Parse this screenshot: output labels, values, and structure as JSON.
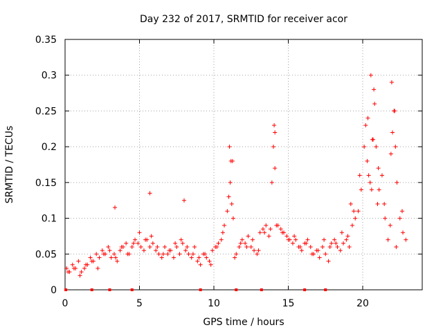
{
  "chart_data": {
    "type": "scatter",
    "title": "Day 232 of 2017, SRMTID for receiver acor",
    "xlabel": "GPS time / hours",
    "ylabel": "SRMTID / TECUs",
    "xlim": [
      0,
      24
    ],
    "ylim": [
      0,
      0.35
    ],
    "grid": true,
    "marker": "+",
    "color": "#ff0000",
    "xticks": [
      0,
      5,
      10,
      15,
      20
    ],
    "xtick_labels": [
      "0",
      "5",
      "10",
      "15",
      "20"
    ],
    "yticks": [
      0,
      0.05,
      0.1,
      0.15,
      0.2,
      0.25,
      0.3,
      0.35
    ],
    "ytick_labels": [
      "0",
      "0.05",
      "0.1",
      "0.15",
      "0.2",
      "0.25",
      "0.3",
      "0.35"
    ],
    "gap_markers_x": [
      0.05,
      1.8,
      3.0,
      4.5,
      9.1,
      11.5,
      13.2,
      16.1,
      17.5
    ],
    "series": [
      {
        "name": "SRMTID",
        "x": [
          0.1,
          0.3,
          0.5,
          0.7,
          0.9,
          1.1,
          1.3,
          1.5,
          1.7,
          1.9,
          2.1,
          2.3,
          2.5,
          2.7,
          2.9,
          3.1,
          3.3,
          3.5,
          3.7,
          3.9,
          4.1,
          4.3,
          4.5,
          4.7,
          4.9,
          5.1,
          5.3,
          5.5,
          5.7,
          5.9,
          6.1,
          6.3,
          6.5,
          6.7,
          6.9,
          7.1,
          7.3,
          7.5,
          7.7,
          7.9,
          8.1,
          8.3,
          8.5,
          8.7,
          8.9,
          9.1,
          9.3,
          9.5,
          9.7,
          9.9,
          10.1,
          10.3,
          10.5,
          10.7,
          10.9,
          11.0,
          11.1,
          11.2,
          11.3,
          11.5,
          11.7,
          11.9,
          12.1,
          12.3,
          12.5,
          12.7,
          12.9,
          13.1,
          13.3,
          13.5,
          13.7,
          13.9,
          14.0,
          14.1,
          14.3,
          14.5,
          14.7,
          14.9,
          15.1,
          15.3,
          15.5,
          15.7,
          15.9,
          16.1,
          16.3,
          16.5,
          16.7,
          16.9,
          17.1,
          17.3,
          17.5,
          17.7,
          17.9,
          18.1,
          18.3,
          18.5,
          18.7,
          18.9,
          19.1,
          19.3,
          19.5,
          19.7,
          19.9,
          20.1,
          20.2,
          20.3,
          20.4,
          20.5,
          20.6,
          20.7,
          20.8,
          20.9,
          21.0,
          21.1,
          21.3,
          21.5,
          21.7,
          21.9,
          22.0,
          22.1,
          22.2,
          22.3,
          22.5,
          22.7,
          22.9,
          0.2,
          0.6,
          1.0,
          1.4,
          1.8,
          2.2,
          2.6,
          3.0,
          3.4,
          3.8,
          4.2,
          4.6,
          5.0,
          5.4,
          5.8,
          6.2,
          6.6,
          7.0,
          7.4,
          7.8,
          8.2,
          8.6,
          9.0,
          9.4,
          9.8,
          10.2,
          10.6,
          11.4,
          11.8,
          12.2,
          12.6,
          13.0,
          13.4,
          13.8,
          14.2,
          14.6,
          15.0,
          15.4,
          15.8,
          16.2,
          16.6,
          17.0,
          17.4,
          17.8,
          18.2,
          18.6,
          19.0,
          19.4,
          19.8,
          20.35,
          20.65,
          21.05,
          21.45,
          21.85,
          22.25,
          22.65,
          11.05,
          11.15,
          14.05,
          14.1,
          20.55,
          20.75,
          21.95,
          22.15,
          5.7,
          3.35,
          8.0,
          11.25,
          19.2
        ],
        "y": [
          0.03,
          0.025,
          0.035,
          0.03,
          0.04,
          0.025,
          0.03,
          0.035,
          0.045,
          0.04,
          0.05,
          0.045,
          0.055,
          0.05,
          0.06,
          0.045,
          0.05,
          0.04,
          0.055,
          0.06,
          0.065,
          0.05,
          0.06,
          0.07,
          0.065,
          0.06,
          0.055,
          0.07,
          0.06,
          0.065,
          0.055,
          0.05,
          0.045,
          0.06,
          0.05,
          0.055,
          0.045,
          0.06,
          0.05,
          0.065,
          0.055,
          0.05,
          0.045,
          0.06,
          0.04,
          0.035,
          0.05,
          0.045,
          0.04,
          0.055,
          0.06,
          0.065,
          0.07,
          0.09,
          0.11,
          0.13,
          0.15,
          0.12,
          0.1,
          0.05,
          0.06,
          0.07,
          0.065,
          0.075,
          0.06,
          0.055,
          0.05,
          0.08,
          0.085,
          0.09,
          0.075,
          0.15,
          0.2,
          0.17,
          0.09,
          0.085,
          0.08,
          0.075,
          0.07,
          0.065,
          0.07,
          0.06,
          0.055,
          0.065,
          0.07,
          0.06,
          0.05,
          0.055,
          0.045,
          0.06,
          0.05,
          0.04,
          0.065,
          0.07,
          0.06,
          0.055,
          0.065,
          0.07,
          0.06,
          0.09,
          0.1,
          0.11,
          0.14,
          0.2,
          0.23,
          0.18,
          0.16,
          0.15,
          0.14,
          0.21,
          0.26,
          0.2,
          0.12,
          0.14,
          0.16,
          0.1,
          0.07,
          0.19,
          0.22,
          0.25,
          0.2,
          0.15,
          0.1,
          0.08,
          0.07,
          0.025,
          0.03,
          0.02,
          0.035,
          0.04,
          0.03,
          0.05,
          0.055,
          0.045,
          0.06,
          0.05,
          0.065,
          0.08,
          0.07,
          0.075,
          0.06,
          0.05,
          0.055,
          0.065,
          0.07,
          0.06,
          0.05,
          0.045,
          0.05,
          0.035,
          0.06,
          0.08,
          0.045,
          0.065,
          0.06,
          0.07,
          0.055,
          0.08,
          0.085,
          0.09,
          0.08,
          0.07,
          0.075,
          0.06,
          0.065,
          0.05,
          0.055,
          0.07,
          0.06,
          0.065,
          0.08,
          0.075,
          0.11,
          0.16,
          0.24,
          0.21,
          0.17,
          0.12,
          0.09,
          0.06,
          0.11,
          0.2,
          0.18,
          0.23,
          0.22,
          0.3,
          0.28,
          0.29,
          0.25,
          0.135,
          0.115,
          0.125,
          0.18,
          0.12
        ]
      }
    ]
  }
}
